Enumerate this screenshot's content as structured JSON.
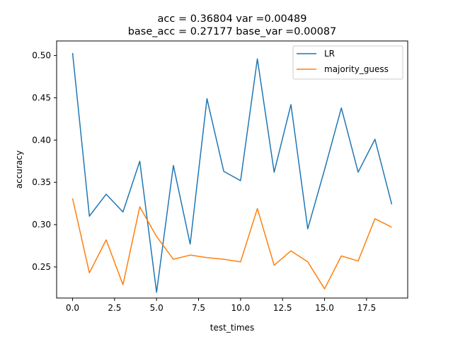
{
  "chart_data": {
    "type": "line",
    "title_lines": [
      "acc = 0.36804  var =0.00489",
      "base_acc = 0.27177  base_var =0.00087"
    ],
    "xlabel": "test_times",
    "ylabel": "accuracy",
    "x": [
      0,
      1,
      2,
      3,
      4,
      5,
      6,
      7,
      8,
      9,
      10,
      11,
      12,
      13,
      14,
      15,
      16,
      17,
      18,
      19
    ],
    "xlim": [
      -0.95,
      19.95
    ],
    "ylim": [
      0.2132,
      0.5172
    ],
    "xticks": [
      0,
      2.5,
      5,
      7.5,
      10,
      12.5,
      15,
      17.5
    ],
    "xtick_labels": [
      "0.0",
      "2.5",
      "5.0",
      "7.5",
      "10.0",
      "12.5",
      "15.0",
      "17.5"
    ],
    "yticks": [
      0.25,
      0.3,
      0.35,
      0.4,
      0.45,
      0.5
    ],
    "ytick_labels": [
      "0.25",
      "0.30",
      "0.35",
      "0.40",
      "0.45",
      "0.50"
    ],
    "grid": false,
    "legend_position": "top-right",
    "series": [
      {
        "name": "LR",
        "color": "#1f77b4",
        "values": [
          0.503,
          0.31,
          0.336,
          0.315,
          0.375,
          0.22,
          0.37,
          0.277,
          0.449,
          0.363,
          0.352,
          0.496,
          0.362,
          0.442,
          0.295,
          0.365,
          0.438,
          0.362,
          0.401,
          0.324
        ]
      },
      {
        "name": "majority_guess",
        "color": "#ff7f0e",
        "values": [
          0.331,
          0.243,
          0.282,
          0.229,
          0.321,
          0.286,
          0.259,
          0.264,
          0.261,
          0.259,
          0.256,
          0.319,
          0.252,
          0.269,
          0.256,
          0.224,
          0.263,
          0.257,
          0.307,
          0.297
        ]
      }
    ]
  }
}
